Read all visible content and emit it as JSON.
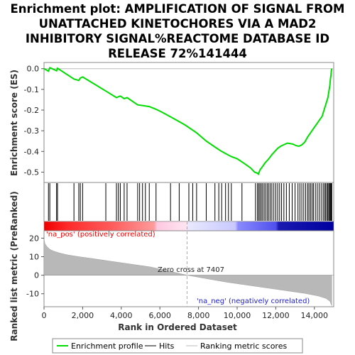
{
  "chart_data": {
    "type": "line",
    "title_lines": [
      "Enrichment plot: AMPLIFICATION OF SIGNAL FROM",
      "UNATTACHED KINETOCHORES VIA A MAD2",
      "INHIBITORY SIGNAL%REACTOME DATABASE ID",
      "RELEASE 72%141444"
    ],
    "top_panel": {
      "ylabel": "Enrichment score (ES)",
      "ylim": [
        -0.55,
        0.03
      ],
      "yticks": [
        0.0,
        -0.1,
        -0.2,
        -0.3,
        -0.4,
        -0.5
      ],
      "ytick_labels": [
        "0.0",
        "-0.1",
        "-0.2",
        "-0.3",
        "-0.4",
        "-0.5"
      ],
      "series": [
        {
          "name": "Enrichment profile",
          "color": "#00dd00",
          "x": [
            0,
            230,
            300,
            650,
            700,
            1550,
            1800,
            1880,
            2000,
            3200,
            3750,
            3950,
            4150,
            4300,
            4850,
            5100,
            5450,
            5800,
            6100,
            6700,
            7300,
            7900,
            8400,
            8900,
            9200,
            9400,
            9700,
            10000,
            10400,
            10700,
            10900,
            11050,
            11100,
            11180,
            11300,
            11450,
            11600,
            11700,
            11800,
            11900,
            12000,
            12100,
            12250,
            12400,
            12600,
            12750,
            12900,
            13050,
            13200,
            13350,
            13500,
            13650,
            13800,
            13950,
            14100,
            14250,
            14400,
            14500,
            14600,
            14700,
            14750,
            14800,
            14830,
            14860,
            14880,
            14900
          ],
          "y": [
            0.0,
            -0.012,
            0.005,
            -0.01,
            0.002,
            -0.05,
            -0.057,
            -0.045,
            -0.04,
            -0.108,
            -0.14,
            -0.132,
            -0.145,
            -0.14,
            -0.175,
            -0.178,
            -0.183,
            -0.196,
            -0.21,
            -0.24,
            -0.272,
            -0.31,
            -0.35,
            -0.382,
            -0.4,
            -0.41,
            -0.425,
            -0.435,
            -0.46,
            -0.48,
            -0.5,
            -0.505,
            -0.51,
            -0.49,
            -0.475,
            -0.455,
            -0.44,
            -0.428,
            -0.415,
            -0.405,
            -0.395,
            -0.385,
            -0.375,
            -0.368,
            -0.36,
            -0.362,
            -0.365,
            -0.372,
            -0.375,
            -0.368,
            -0.355,
            -0.33,
            -0.31,
            -0.29,
            -0.27,
            -0.25,
            -0.23,
            -0.2,
            -0.17,
            -0.14,
            -0.11,
            -0.08,
            -0.05,
            -0.03,
            -0.01,
            0.0
          ]
        }
      ]
    },
    "hits": {
      "name": "Hits",
      "x": [
        230,
        300,
        650,
        700,
        1550,
        1800,
        1880,
        2000,
        3200,
        3750,
        3850,
        3950,
        4150,
        4300,
        4850,
        4950,
        5100,
        5250,
        5450,
        5800,
        6550,
        7000,
        7500,
        7700,
        7900,
        8400,
        8850,
        9050,
        9200,
        9400,
        9550,
        9700,
        10250,
        10950,
        11050,
        11120,
        11180,
        11250,
        11320,
        11400,
        11480,
        11560,
        11640,
        11720,
        11800,
        11900,
        12000,
        12100,
        12200,
        12300,
        12420,
        12550,
        12700,
        12850,
        13000,
        13150,
        13250,
        13350,
        13450,
        13550,
        13650,
        13720,
        13800,
        13880,
        13950,
        14050,
        14150,
        14250,
        14350,
        14450,
        14520,
        14580,
        14650,
        14700,
        14750,
        14800,
        14840,
        14870,
        14900
      ]
    },
    "ranked_bar": {
      "na_pos_color": "#ff0000",
      "na_neg_color": "#0000cc"
    },
    "metric_panel": {
      "ylabel": "Ranked list metric (PreRanked)",
      "ylim": [
        -17,
        24
      ],
      "yticks": [
        20,
        10,
        0,
        -10
      ],
      "ytick_labels": [
        "20",
        "10",
        "0",
        "-10"
      ],
      "x": [
        0,
        50,
        150,
        300,
        500,
        800,
        1200,
        1800,
        2500,
        3500,
        4500,
        5500,
        6500,
        7407,
        8500,
        9500,
        10500,
        11500,
        12500,
        13500,
        14200,
        14600,
        14800,
        14900
      ],
      "values": [
        19.5,
        17.0,
        15.5,
        14.0,
        13.0,
        12.0,
        11.0,
        10.0,
        9.0,
        7.5,
        6.0,
        4.5,
        2.2,
        0.0,
        -2.0,
        -3.8,
        -5.3,
        -6.8,
        -8.3,
        -9.8,
        -11.2,
        -12.5,
        -14.0,
        -16.5
      ],
      "na_pos_label": "'na_pos' (positively correlated)",
      "na_neg_label": "'na_neg' (negatively correlated)",
      "zero_cross_label": "Zero cross at 7407",
      "zero_cross_x": 7407
    },
    "xlabel": "Rank in Ordered Dataset",
    "xlim": [
      0,
      15000
    ],
    "xticks": [
      0,
      2000,
      4000,
      6000,
      8000,
      10000,
      12000,
      14000
    ],
    "xtick_labels": [
      "0",
      "2,000",
      "4,000",
      "6,000",
      "8,000",
      "10,000",
      "12,000",
      "14,000"
    ],
    "legend": {
      "placement": "bottom",
      "entries": [
        "Enrichment profile",
        "Hits",
        "Ranking metric scores"
      ]
    }
  }
}
